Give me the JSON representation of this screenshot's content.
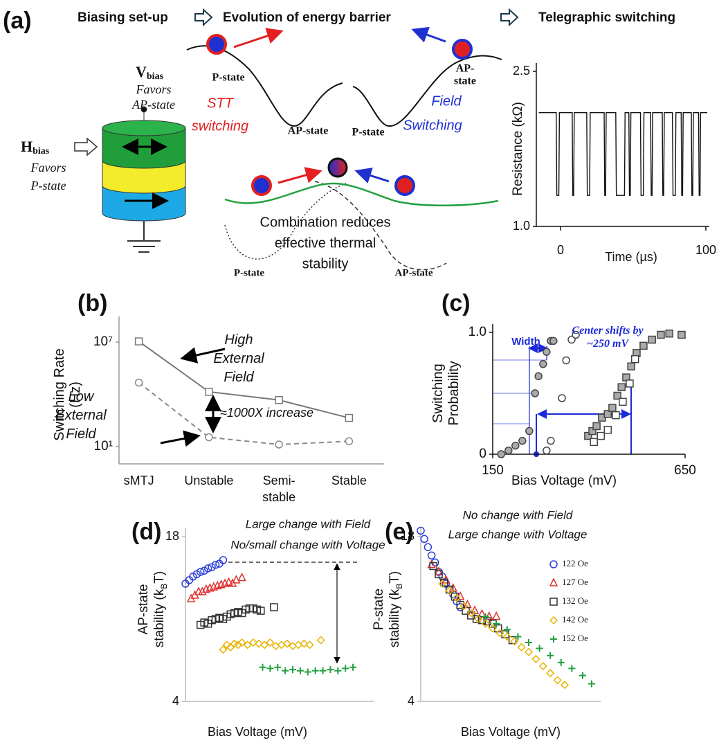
{
  "figure": {
    "panel_label": "(a)",
    "headers": [
      "Biasing set-up",
      "Evolution of energy barrier",
      "Telegraphic switching"
    ],
    "v_bias": {
      "symbol": "V",
      "subscript": "bias",
      "note": [
        "Favors",
        "AP-state"
      ]
    },
    "h_bias": {
      "symbol": "H",
      "subscript": "bias",
      "note": [
        "Favors",
        "P-state"
      ]
    },
    "stt": {
      "state_left": "P-state",
      "label": [
        "STT",
        "switching"
      ],
      "state_right": "AP-state"
    },
    "field": {
      "state_right": [
        "AP-",
        "state"
      ],
      "label": [
        "Field",
        "Switching"
      ],
      "state_left": "P-state"
    },
    "combination": {
      "text": [
        "Combination reduces",
        "effective thermal",
        "stability"
      ],
      "state_left": "P-state",
      "state_right": "AP-state"
    }
  },
  "chart_data": [
    {
      "type": "line",
      "xlabel": "Time (µs)",
      "ylabel": "Resistance (kΩ)",
      "color": "#111111",
      "xlim": [
        -16.7,
        102.4
      ],
      "xticks": [
        0,
        100
      ],
      "ylim": [
        1.0,
        2.5
      ],
      "yticks": [
        {
          "value": 2.5,
          "label": "2.5"
        },
        {
          "value": 1.0,
          "label": "1.0"
        }
      ],
      "x": [
        -15,
        -3,
        -2.6,
        -1.2,
        -0.8,
        8,
        8.4,
        9,
        9.4,
        18,
        18.4,
        20,
        20.4,
        30,
        30.4,
        31,
        31.4,
        38,
        38.4,
        44,
        44.4,
        47,
        47.4,
        48,
        48.4,
        55,
        55.4,
        57,
        57.4,
        62,
        62.4,
        63,
        63.4,
        70,
        70.4,
        71,
        71.4,
        77,
        77.4,
        79,
        79.4,
        83,
        83.4,
        84,
        84.4,
        90,
        90.4,
        91,
        91.4,
        95,
        95.4,
        96,
        96.4,
        101
      ],
      "values": [
        2.1,
        2.1,
        1.3,
        1.3,
        2.1,
        2.1,
        1.3,
        1.3,
        2.1,
        2.1,
        1.3,
        1.3,
        2.1,
        2.1,
        1.3,
        1.3,
        2.1,
        2.1,
        1.3,
        1.3,
        2.1,
        2.1,
        1.3,
        1.3,
        2.1,
        2.1,
        1.3,
        1.3,
        2.1,
        2.1,
        1.3,
        1.3,
        2.1,
        2.1,
        1.3,
        1.3,
        2.1,
        2.1,
        1.3,
        1.3,
        2.1,
        2.1,
        1.3,
        1.3,
        2.1,
        2.1,
        1.3,
        1.3,
        2.1,
        2.1,
        1.3,
        1.3,
        2.1,
        2.1
      ]
    },
    {
      "type": "line",
      "panel": "(b)",
      "ylabel": "Switching Rate (Hz)",
      "yscale": "log",
      "categories": [
        "sMTJ",
        "Unstable",
        "Semi-stable",
        "Stable"
      ],
      "ylim": [
        1,
        100000000
      ],
      "yticks": [
        {
          "value": 10000000,
          "label": "10⁷"
        },
        {
          "value": 10,
          "label": "10¹"
        }
      ],
      "series": [
        {
          "name": "High External Field",
          "color": "#777777",
          "linestyle": "solid",
          "marker": "s",
          "values": [
            11000000,
            14000,
            4700,
            440
          ]
        },
        {
          "name": "Low External Field",
          "color": "#888888",
          "linestyle": "dashed",
          "marker": "o",
          "values": [
            47000,
            34,
            13,
            20
          ]
        }
      ],
      "annotations": [
        "≈1000X increase"
      ]
    },
    {
      "type": "scatter",
      "panel": "(c)",
      "xlabel": "Bias Voltage (mV)",
      "ylabel": "Switching Probability",
      "xlim": [
        150,
        650
      ],
      "xticks": [
        150,
        650
      ],
      "ylim": [
        0,
        1
      ],
      "yticks": [
        0,
        {
          "value": 1,
          "label": "1.0"
        }
      ],
      "series": [
        {
          "marker": "o",
          "color": "#444444",
          "facecolor": "#aaaaaa",
          "x": [
            172,
            191,
            209,
            227,
            245,
            260,
            269,
            281,
            290,
            301,
            308
          ],
          "values": [
            0,
            0.03,
            0.07,
            0.11,
            0.19,
            0.5,
            0.64,
            0.74,
            0.84,
            0.93,
            0.93
          ]
        },
        {
          "marker": "o",
          "color": "#444444",
          "facecolor": "#ffffff",
          "x": [
            290,
            301,
            330,
            341,
            355,
            366
          ],
          "values": [
            0.03,
            0.11,
            0.46,
            0.77,
            0.94,
            0.98
          ]
        },
        {
          "marker": "s",
          "color": "#444444",
          "facecolor": "#aaaaaa",
          "x": [
            398,
            409,
            420,
            434,
            449,
            461,
            474,
            485,
            497,
            510,
            524,
            542,
            564,
            587,
            609,
            641
          ],
          "values": [
            0.15,
            0.19,
            0.23,
            0.3,
            0.33,
            0.38,
            0.48,
            0.55,
            0.63,
            0.72,
            0.83,
            0.89,
            0.94,
            0.98,
            0.99,
            0.98
          ]
        },
        {
          "marker": "s",
          "color": "#444444",
          "facecolor": "#ffffff",
          "x": [
            413,
            431,
            449,
            470,
            488,
            506,
            520
          ],
          "values": [
            0.1,
            0.15,
            0.2,
            0.32,
            0.43,
            0.58,
            0.78
          ]
        }
      ],
      "annotations": [
        "Width",
        "Center shifts by ~250 mV"
      ]
    },
    {
      "type": "scatter",
      "panel": "(d)",
      "xlabel": "Bias Voltage (mV)",
      "ylabel": [
        "AP-state",
        "stability (k",
        "B",
        "T)"
      ],
      "xlim": [
        0,
        100
      ],
      "ylim": [
        4,
        18
      ],
      "yticks": [
        4,
        18
      ],
      "series": [
        {
          "marker": "o",
          "color": "#2a3fd8",
          "x": [
            0,
            2,
            4,
            6,
            8,
            10,
            12,
            14,
            16,
            18,
            20
          ],
          "values": [
            14.0,
            14.3,
            14.6,
            14.8,
            15.0,
            15.1,
            15.3,
            15.4,
            15.6,
            15.7,
            16.0
          ]
        },
        {
          "marker": "^",
          "color": "#e03030",
          "x": [
            3,
            5,
            7,
            9,
            11,
            13,
            15,
            17,
            19,
            21,
            23,
            25,
            27,
            30
          ],
          "values": [
            12.7,
            13.0,
            13.3,
            13.3,
            13.5,
            13.6,
            13.7,
            13.8,
            13.9,
            14.0,
            14.1,
            14.0,
            14.3,
            14.5
          ]
        },
        {
          "marker": "s",
          "color": "#333333",
          "x": [
            8,
            10,
            12,
            14,
            16,
            18,
            20,
            22,
            24,
            26,
            28,
            30,
            32,
            34,
            36,
            38,
            40,
            47
          ],
          "values": [
            10.5,
            10.7,
            10.6,
            10.9,
            11.0,
            11.1,
            11.0,
            11.2,
            11.4,
            11.5,
            11.6,
            11.5,
            11.8,
            11.9,
            11.9,
            11.8,
            11.7,
            12.0
          ]
        },
        {
          "marker": "D",
          "color": "#e8b400",
          "x": [
            20,
            22,
            24,
            26,
            28,
            30,
            33,
            36,
            39,
            42,
            45,
            48,
            51,
            54,
            57,
            60,
            63,
            66,
            72
          ],
          "values": [
            8.4,
            8.8,
            8.6,
            8.9,
            8.8,
            9.0,
            8.8,
            9.0,
            8.9,
            8.8,
            9.0,
            8.7,
            8.8,
            8.9,
            8.7,
            8.8,
            8.9,
            8.8,
            9.2
          ]
        },
        {
          "marker": "+",
          "color": "#22a040",
          "x": [
            41,
            45,
            49,
            53,
            57,
            61,
            65,
            69,
            73,
            77,
            81,
            85,
            89
          ],
          "values": [
            6.9,
            6.8,
            6.9,
            6.6,
            6.7,
            6.6,
            6.5,
            6.6,
            6.6,
            6.7,
            6.6,
            6.8,
            6.9
          ]
        }
      ],
      "annotations": [
        "Large change with Field",
        "No/small change with Voltage"
      ]
    },
    {
      "type": "scatter",
      "panel": "(e)",
      "xlabel": "Bias Voltage (mV)",
      "ylabel": [
        "P-state",
        "stability (k",
        "B",
        "T)"
      ],
      "xlim": [
        0,
        100
      ],
      "ylim": [
        4,
        18
      ],
      "yticks": [
        4,
        18
      ],
      "legend": "upper right",
      "series": [
        {
          "name": "122 Oe",
          "marker": "o",
          "color": "#2a3fd8",
          "x": [
            0,
            2,
            4,
            6,
            8,
            10,
            12,
            14,
            16,
            18,
            20,
            22
          ],
          "values": [
            18.5,
            17.8,
            17.1,
            16.4,
            15.8,
            15.0,
            14.6,
            14.0,
            13.5,
            13.1,
            12.5,
            12.0
          ]
        },
        {
          "name": "127 Oe",
          "marker": "^",
          "color": "#e03030",
          "x": [
            6,
            10,
            14,
            18,
            22,
            26,
            30,
            34,
            38,
            42
          ],
          "values": [
            15.6,
            15.0,
            14.3,
            13.6,
            12.9,
            12.2,
            11.7,
            11.4,
            11.2,
            11.2
          ]
        },
        {
          "name": "132 Oe",
          "marker": "s",
          "color": "#333333",
          "x": [
            7,
            10,
            13,
            16,
            19,
            22,
            25,
            28,
            31,
            34,
            37,
            40,
            43,
            47,
            51
          ],
          "values": [
            15.5,
            14.8,
            14.1,
            13.5,
            12.9,
            12.2,
            11.7,
            11.3,
            11.0,
            10.9,
            10.8,
            10.6,
            10.2,
            9.7,
            9.2
          ]
        },
        {
          "name": "142 Oe",
          "marker": "D",
          "color": "#e8b400",
          "x": [
            12,
            16,
            20,
            24,
            28,
            32,
            36,
            40,
            44,
            48,
            52,
            56,
            60,
            64,
            68,
            72,
            76,
            80
          ],
          "values": [
            14.0,
            13.4,
            12.8,
            12.1,
            11.5,
            11.0,
            10.6,
            10.2,
            9.8,
            9.5,
            9.1,
            8.6,
            8.2,
            7.6,
            7.0,
            6.4,
            5.8,
            5.4
          ]
        },
        {
          "name": "152 Oe",
          "marker": "+",
          "color": "#22a040",
          "x": [
            36,
            42,
            48,
            54,
            60,
            66,
            72,
            78,
            84,
            90,
            95
          ],
          "values": [
            11.2,
            10.6,
            10.1,
            9.5,
            9.0,
            8.5,
            7.9,
            7.3,
            6.8,
            6.2,
            5.5
          ]
        }
      ],
      "annotations": [
        "No change with Field",
        "Large change with Voltage"
      ]
    }
  ]
}
